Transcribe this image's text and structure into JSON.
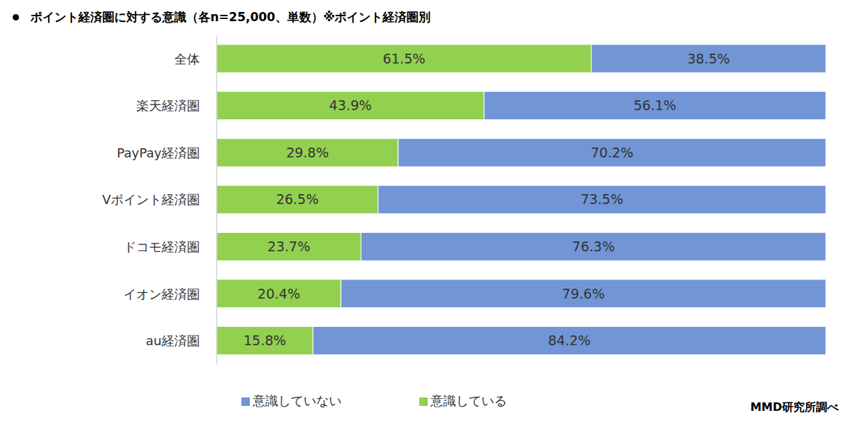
{
  "chart_data": {
    "type": "bar",
    "orientation": "horizontal",
    "stacked": true,
    "data_labels": true,
    "tick_labels": "y",
    "grid": false,
    "legend": "bottom",
    "title": "ポイント経済圏に対する意識（各n=25,000、単数）※ポイント経済圏別",
    "annotations": [
      "MMD研究所調べ"
    ],
    "categories": [
      "全体",
      "楽天経済圏",
      "PayPay経済圏",
      "Vポイント経済圏",
      "ドコモ経済圏",
      "イオン経済圏",
      "au経済圏"
    ],
    "xlim": [
      0,
      100
    ],
    "series": [
      {
        "name": "意識している",
        "color": "#92d050",
        "values": [
          61.5,
          43.9,
          29.8,
          26.5,
          23.7,
          20.4,
          15.8
        ],
        "value_labels": [
          "61.5%",
          "43.9%",
          "29.8%",
          "26.5%",
          "23.7%",
          "20.4%",
          "15.8%"
        ]
      },
      {
        "name": "意識していない",
        "color": "#7195d5",
        "values": [
          38.5,
          56.1,
          70.2,
          73.5,
          76.3,
          79.6,
          84.2
        ],
        "value_labels": [
          "38.5%",
          "56.1%",
          "70.2%",
          "73.5%",
          "76.3%",
          "79.6%",
          "84.2%"
        ]
      }
    ]
  }
}
